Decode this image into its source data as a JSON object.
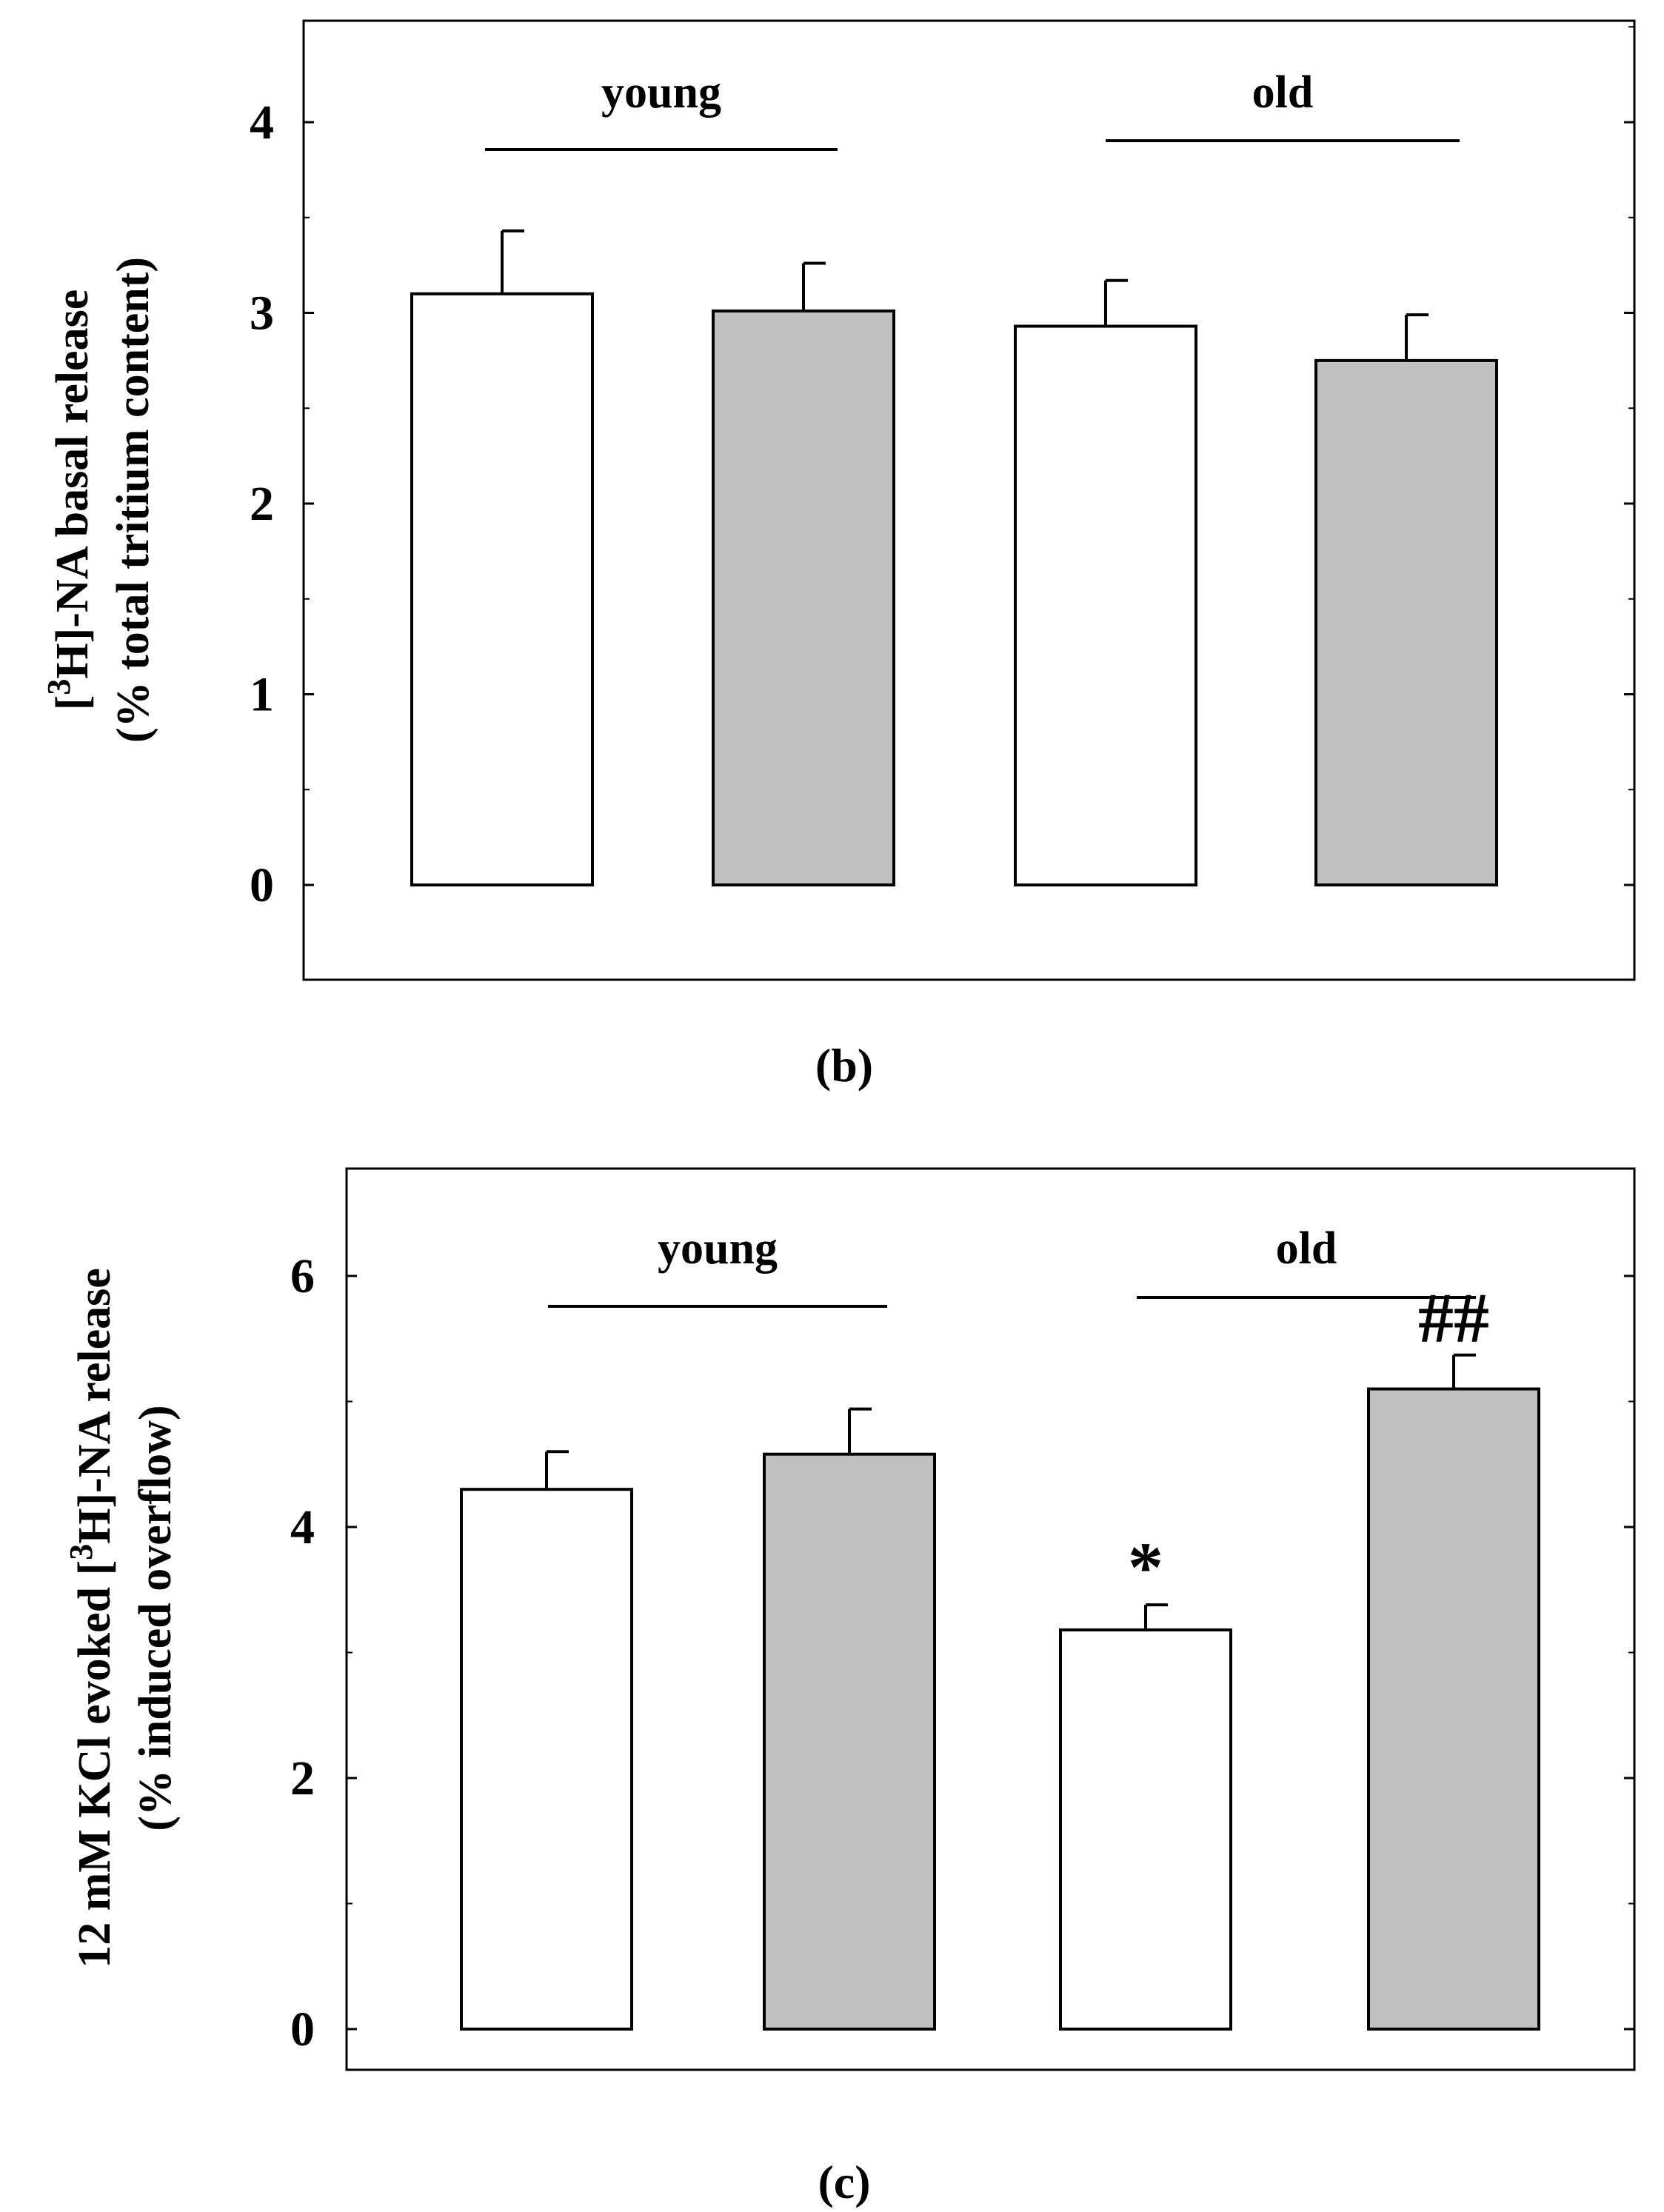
{
  "chart_data": [
    {
      "type": "bar",
      "panel_label": "(b)",
      "ylabel_line1_prefix": "[",
      "ylabel_line1_sup": "3",
      "ylabel_line1_suffix": "H]-NA basal release",
      "ylabel_line2": "(% total tritium content)",
      "ylim": [
        -0.5,
        4.5
      ],
      "yticks": [
        0,
        1,
        2,
        3,
        4
      ],
      "groups": [
        {
          "label": "young",
          "bars": [
            0,
            1
          ]
        },
        {
          "label": "old",
          "bars": [
            2,
            3
          ]
        }
      ],
      "bars": [
        {
          "value": 3.1,
          "error": 0.33,
          "fill": "#ffffff",
          "annotation": ""
        },
        {
          "value": 3.01,
          "error": 0.25,
          "fill": "#c0c0c0",
          "annotation": ""
        },
        {
          "value": 2.93,
          "error": 0.24,
          "fill": "#ffffff",
          "annotation": ""
        },
        {
          "value": 2.75,
          "error": 0.24,
          "fill": "#c0c0c0",
          "annotation": ""
        }
      ]
    },
    {
      "type": "bar",
      "panel_label": "(c)",
      "ylabel_line1_prefix": "12 mM KCl evoked [",
      "ylabel_line1_sup": "3",
      "ylabel_line1_suffix": "H]-NA release",
      "ylabel_line2": "(% induced overflow)",
      "ylim": [
        -0.4,
        7.0
      ],
      "yticks": [
        0,
        2,
        4,
        6
      ],
      "groups": [
        {
          "label": "young",
          "bars": [
            0,
            1
          ]
        },
        {
          "label": "old",
          "bars": [
            2,
            3
          ]
        }
      ],
      "bars": [
        {
          "value": 4.3,
          "error": 0.3,
          "fill": "#ffffff",
          "annotation": ""
        },
        {
          "value": 4.58,
          "error": 0.36,
          "fill": "#c0c0c0",
          "annotation": ""
        },
        {
          "value": 3.18,
          "error": 0.2,
          "fill": "#ffffff",
          "annotation": "*"
        },
        {
          "value": 5.1,
          "error": 0.27,
          "fill": "#c0c0c0",
          "annotation": "##"
        }
      ]
    }
  ]
}
